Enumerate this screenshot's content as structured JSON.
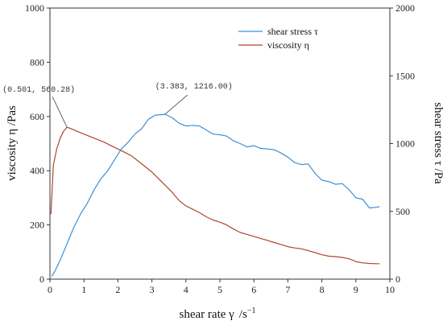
{
  "chart_data": {
    "type": "line",
    "xlabel": "shear rate γ",
    "xlabel_unit": "/s",
    "xlabel_unit_exp": "−1",
    "ylabel_left": "viscosity η  /Pas",
    "ylabel_right": "shear stress τ  /Pa",
    "xlim": [
      0,
      10
    ],
    "ylim_left": [
      0,
      1000
    ],
    "ylim_right": [
      0,
      2000
    ],
    "x_ticks": [
      0,
      1,
      2,
      3,
      4,
      5,
      6,
      7,
      8,
      9,
      10
    ],
    "y_left_ticks": [
      0,
      200,
      400,
      600,
      800,
      1000
    ],
    "y_right_ticks": [
      0,
      500,
      1000,
      1500,
      2000
    ],
    "grid": false,
    "legend_position": "top-right",
    "series": [
      {
        "name": "shear stress τ",
        "axis": "right",
        "color": "#3c8fd9",
        "x": [
          0.05,
          0.15,
          0.3,
          0.5,
          0.7,
          0.9,
          1.1,
          1.3,
          1.5,
          1.7,
          1.9,
          2.1,
          2.3,
          2.5,
          2.7,
          2.9,
          3.1,
          3.4,
          3.6,
          3.8,
          4.0,
          4.2,
          4.4,
          4.6,
          4.8,
          5.0,
          5.2,
          5.4,
          5.6,
          5.8,
          6.0,
          6.2,
          6.4,
          6.6,
          6.8,
          7.0,
          7.2,
          7.4,
          7.6,
          7.8,
          8.0,
          8.2,
          8.4,
          8.6,
          8.8,
          9.0,
          9.2,
          9.4,
          9.6,
          9.7
        ],
        "values": [
          20,
          60,
          140,
          260,
          380,
          480,
          560,
          660,
          740,
          800,
          880,
          960,
          1010,
          1070,
          1110,
          1180,
          1210,
          1216,
          1190,
          1150,
          1130,
          1135,
          1130,
          1100,
          1070,
          1065,
          1055,
          1020,
          1000,
          975,
          985,
          965,
          960,
          955,
          930,
          900,
          860,
          845,
          850,
          780,
          730,
          720,
          700,
          705,
          660,
          600,
          590,
          525,
          530,
          535
        ]
      },
      {
        "name": "viscosity η",
        "axis": "left",
        "color": "#b2442d",
        "x": [
          0.03,
          0.1,
          0.2,
          0.3,
          0.4,
          0.501,
          0.6,
          0.8,
          1.0,
          1.2,
          1.4,
          1.6,
          1.8,
          2.0,
          2.2,
          2.4,
          2.6,
          2.8,
          3.0,
          3.2,
          3.4,
          3.6,
          3.8,
          4.0,
          4.2,
          4.4,
          4.6,
          4.8,
          5.0,
          5.2,
          5.4,
          5.6,
          5.8,
          6.0,
          6.2,
          6.4,
          6.6,
          6.8,
          7.0,
          7.2,
          7.4,
          7.6,
          7.8,
          8.0,
          8.2,
          8.4,
          8.6,
          8.8,
          9.0,
          9.2,
          9.4,
          9.6,
          9.7
        ],
        "values": [
          240,
          420,
          480,
          520,
          545,
          560.28,
          556,
          545,
          535,
          525,
          515,
          505,
          492,
          480,
          468,
          455,
          435,
          415,
          395,
          370,
          345,
          320,
          290,
          270,
          258,
          245,
          230,
          218,
          210,
          200,
          185,
          172,
          165,
          158,
          150,
          143,
          135,
          128,
          120,
          115,
          112,
          105,
          98,
          90,
          85,
          83,
          80,
          75,
          65,
          60,
          58,
          57,
          57
        ]
      }
    ],
    "annotations": [
      {
        "text": "(0.501, 560.28)",
        "x": 0.501,
        "y": 560.28,
        "axis": "left"
      },
      {
        "text": "(3.383, 1216.00)",
        "x": 3.383,
        "y": 1216.0,
        "axis": "right"
      }
    ]
  }
}
